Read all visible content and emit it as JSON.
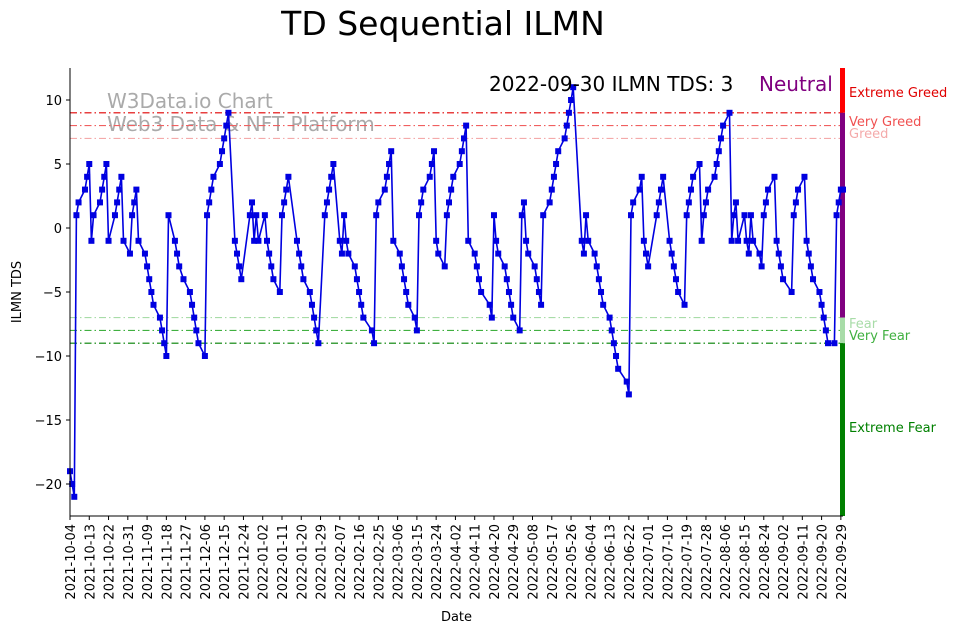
{
  "chart_data": {
    "type": "line",
    "title": "TD Sequential ILMN",
    "xlabel": "Date",
    "ylabel": "ILMN TDS",
    "ylim": [
      -22.5,
      12.5
    ],
    "xlim": [
      "2021-10-04",
      "2022-09-30"
    ],
    "yticks": [
      10,
      5,
      0,
      -5,
      -10,
      -15,
      -20
    ],
    "ytick_labels": [
      "10",
      "5",
      "0",
      "−5",
      "−10",
      "−15",
      "−20"
    ],
    "xtick_labels": [
      "2021-10-04",
      "2021-10-13",
      "2021-10-22",
      "2021-10-31",
      "2021-11-09",
      "2021-11-18",
      "2021-11-27",
      "2021-12-06",
      "2021-12-15",
      "2021-12-24",
      "2022-01-02",
      "2022-01-11",
      "2022-01-20",
      "2022-01-29",
      "2022-02-07",
      "2022-02-16",
      "2022-02-25",
      "2022-03-06",
      "2022-03-15",
      "2022-03-24",
      "2022-04-02",
      "2022-04-11",
      "2022-04-20",
      "2022-04-29",
      "2022-05-08",
      "2022-05-17",
      "2022-05-26",
      "2022-06-04",
      "2022-06-13",
      "2022-06-22",
      "2022-07-01",
      "2022-07-10",
      "2022-07-19",
      "2022-07-28",
      "2022-08-06",
      "2022-08-15",
      "2022-08-24",
      "2022-09-02",
      "2022-09-11",
      "2022-09-20",
      "2022-09-29"
    ],
    "grid": false,
    "series": [
      {
        "color": "#0000e0",
        "marker": "square",
        "points": [
          [
            "2021-10-04",
            -19
          ],
          [
            "2021-10-05",
            -20
          ],
          [
            "2021-10-06",
            -21
          ],
          [
            "2021-10-07",
            1
          ],
          [
            "2021-10-08",
            2
          ],
          [
            "2021-10-11",
            3
          ],
          [
            "2021-10-12",
            4
          ],
          [
            "2021-10-13",
            5
          ],
          [
            "2021-10-14",
            -1
          ],
          [
            "2021-10-15",
            1
          ],
          [
            "2021-10-18",
            2
          ],
          [
            "2021-10-19",
            3
          ],
          [
            "2021-10-20",
            4
          ],
          [
            "2021-10-21",
            5
          ],
          [
            "2021-10-22",
            -1
          ],
          [
            "2021-10-25",
            1
          ],
          [
            "2021-10-26",
            2
          ],
          [
            "2021-10-27",
            3
          ],
          [
            "2021-10-28",
            4
          ],
          [
            "2021-10-29",
            -1
          ],
          [
            "2021-11-01",
            -2
          ],
          [
            "2021-11-02",
            1
          ],
          [
            "2021-11-03",
            2
          ],
          [
            "2021-11-04",
            3
          ],
          [
            "2021-11-05",
            -1
          ],
          [
            "2021-11-08",
            -2
          ],
          [
            "2021-11-09",
            -3
          ],
          [
            "2021-11-10",
            -4
          ],
          [
            "2021-11-11",
            -5
          ],
          [
            "2021-11-12",
            -6
          ],
          [
            "2021-11-15",
            -7
          ],
          [
            "2021-11-16",
            -8
          ],
          [
            "2021-11-17",
            -9
          ],
          [
            "2021-11-18",
            -10
          ],
          [
            "2021-11-19",
            1
          ],
          [
            "2021-11-22",
            -1
          ],
          [
            "2021-11-23",
            -2
          ],
          [
            "2021-11-24",
            -3
          ],
          [
            "2021-11-26",
            -4
          ],
          [
            "2021-11-29",
            -5
          ],
          [
            "2021-11-30",
            -6
          ],
          [
            "2021-12-01",
            -7
          ],
          [
            "2021-12-02",
            -8
          ],
          [
            "2021-12-03",
            -9
          ],
          [
            "2021-12-06",
            -10
          ],
          [
            "2021-12-07",
            1
          ],
          [
            "2021-12-08",
            2
          ],
          [
            "2021-12-09",
            3
          ],
          [
            "2021-12-10",
            4
          ],
          [
            "2021-12-13",
            5
          ],
          [
            "2021-12-14",
            6
          ],
          [
            "2021-12-15",
            7
          ],
          [
            "2021-12-16",
            8
          ],
          [
            "2021-12-17",
            9
          ],
          [
            "2021-12-20",
            -1
          ],
          [
            "2021-12-21",
            -2
          ],
          [
            "2021-12-22",
            -3
          ],
          [
            "2021-12-23",
            -4
          ],
          [
            "2021-12-27",
            1
          ],
          [
            "2021-12-28",
            2
          ],
          [
            "2021-12-29",
            -1
          ],
          [
            "2021-12-30",
            1
          ],
          [
            "2021-12-31",
            -1
          ],
          [
            "2022-01-03",
            1
          ],
          [
            "2022-01-04",
            -1
          ],
          [
            "2022-01-05",
            -2
          ],
          [
            "2022-01-06",
            -3
          ],
          [
            "2022-01-07",
            -4
          ],
          [
            "2022-01-10",
            -5
          ],
          [
            "2022-01-11",
            1
          ],
          [
            "2022-01-12",
            2
          ],
          [
            "2022-01-13",
            3
          ],
          [
            "2022-01-14",
            4
          ],
          [
            "2022-01-18",
            -1
          ],
          [
            "2022-01-19",
            -2
          ],
          [
            "2022-01-20",
            -3
          ],
          [
            "2022-01-21",
            -4
          ],
          [
            "2022-01-24",
            -5
          ],
          [
            "2022-01-25",
            -6
          ],
          [
            "2022-01-26",
            -7
          ],
          [
            "2022-01-27",
            -8
          ],
          [
            "2022-01-28",
            -9
          ],
          [
            "2022-01-31",
            1
          ],
          [
            "2022-02-01",
            2
          ],
          [
            "2022-02-02",
            3
          ],
          [
            "2022-02-03",
            4
          ],
          [
            "2022-02-04",
            5
          ],
          [
            "2022-02-07",
            -1
          ],
          [
            "2022-02-08",
            -2
          ],
          [
            "2022-02-09",
            1
          ],
          [
            "2022-02-10",
            -1
          ],
          [
            "2022-02-11",
            -2
          ],
          [
            "2022-02-14",
            -3
          ],
          [
            "2022-02-15",
            -4
          ],
          [
            "2022-02-16",
            -5
          ],
          [
            "2022-02-17",
            -6
          ],
          [
            "2022-02-18",
            -7
          ],
          [
            "2022-02-22",
            -8
          ],
          [
            "2022-02-23",
            -9
          ],
          [
            "2022-02-24",
            1
          ],
          [
            "2022-02-25",
            2
          ],
          [
            "2022-02-28",
            3
          ],
          [
            "2022-03-01",
            4
          ],
          [
            "2022-03-02",
            5
          ],
          [
            "2022-03-03",
            6
          ],
          [
            "2022-03-04",
            -1
          ],
          [
            "2022-03-07",
            -2
          ],
          [
            "2022-03-08",
            -3
          ],
          [
            "2022-03-09",
            -4
          ],
          [
            "2022-03-10",
            -5
          ],
          [
            "2022-03-11",
            -6
          ],
          [
            "2022-03-14",
            -7
          ],
          [
            "2022-03-15",
            -8
          ],
          [
            "2022-03-16",
            1
          ],
          [
            "2022-03-17",
            2
          ],
          [
            "2022-03-18",
            3
          ],
          [
            "2022-03-21",
            4
          ],
          [
            "2022-03-22",
            5
          ],
          [
            "2022-03-23",
            6
          ],
          [
            "2022-03-24",
            -1
          ],
          [
            "2022-03-25",
            -2
          ],
          [
            "2022-03-28",
            -3
          ],
          [
            "2022-03-29",
            1
          ],
          [
            "2022-03-30",
            2
          ],
          [
            "2022-03-31",
            3
          ],
          [
            "2022-04-01",
            4
          ],
          [
            "2022-04-04",
            5
          ],
          [
            "2022-04-05",
            6
          ],
          [
            "2022-04-06",
            7
          ],
          [
            "2022-04-07",
            8
          ],
          [
            "2022-04-08",
            -1
          ],
          [
            "2022-04-11",
            -2
          ],
          [
            "2022-04-12",
            -3
          ],
          [
            "2022-04-13",
            -4
          ],
          [
            "2022-04-14",
            -5
          ],
          [
            "2022-04-18",
            -6
          ],
          [
            "2022-04-19",
            -7
          ],
          [
            "2022-04-20",
            1
          ],
          [
            "2022-04-21",
            -1
          ],
          [
            "2022-04-22",
            -2
          ],
          [
            "2022-04-25",
            -3
          ],
          [
            "2022-04-26",
            -4
          ],
          [
            "2022-04-27",
            -5
          ],
          [
            "2022-04-28",
            -6
          ],
          [
            "2022-04-29",
            -7
          ],
          [
            "2022-05-02",
            -8
          ],
          [
            "2022-05-03",
            1
          ],
          [
            "2022-05-04",
            2
          ],
          [
            "2022-05-05",
            -1
          ],
          [
            "2022-05-06",
            -2
          ],
          [
            "2022-05-09",
            -3
          ],
          [
            "2022-05-10",
            -4
          ],
          [
            "2022-05-11",
            -5
          ],
          [
            "2022-05-12",
            -6
          ],
          [
            "2022-05-13",
            1
          ],
          [
            "2022-05-16",
            2
          ],
          [
            "2022-05-17",
            3
          ],
          [
            "2022-05-18",
            4
          ],
          [
            "2022-05-19",
            5
          ],
          [
            "2022-05-20",
            6
          ],
          [
            "2022-05-23",
            7
          ],
          [
            "2022-05-24",
            8
          ],
          [
            "2022-05-25",
            9
          ],
          [
            "2022-05-26",
            10
          ],
          [
            "2022-05-27",
            11
          ],
          [
            "2022-05-31",
            -1
          ],
          [
            "2022-06-01",
            -2
          ],
          [
            "2022-06-02",
            1
          ],
          [
            "2022-06-03",
            -1
          ],
          [
            "2022-06-06",
            -2
          ],
          [
            "2022-06-07",
            -3
          ],
          [
            "2022-06-08",
            -4
          ],
          [
            "2022-06-09",
            -5
          ],
          [
            "2022-06-10",
            -6
          ],
          [
            "2022-06-13",
            -7
          ],
          [
            "2022-06-14",
            -8
          ],
          [
            "2022-06-15",
            -9
          ],
          [
            "2022-06-16",
            -10
          ],
          [
            "2022-06-17",
            -11
          ],
          [
            "2022-06-21",
            -12
          ],
          [
            "2022-06-22",
            -13
          ],
          [
            "2022-06-23",
            1
          ],
          [
            "2022-06-24",
            2
          ],
          [
            "2022-06-27",
            3
          ],
          [
            "2022-06-28",
            4
          ],
          [
            "2022-06-29",
            -1
          ],
          [
            "2022-06-30",
            -2
          ],
          [
            "2022-07-01",
            -3
          ],
          [
            "2022-07-05",
            1
          ],
          [
            "2022-07-06",
            2
          ],
          [
            "2022-07-07",
            3
          ],
          [
            "2022-07-08",
            4
          ],
          [
            "2022-07-11",
            -1
          ],
          [
            "2022-07-12",
            -2
          ],
          [
            "2022-07-13",
            -3
          ],
          [
            "2022-07-14",
            -4
          ],
          [
            "2022-07-15",
            -5
          ],
          [
            "2022-07-18",
            -6
          ],
          [
            "2022-07-19",
            1
          ],
          [
            "2022-07-20",
            2
          ],
          [
            "2022-07-21",
            3
          ],
          [
            "2022-07-22",
            4
          ],
          [
            "2022-07-25",
            5
          ],
          [
            "2022-07-26",
            -1
          ],
          [
            "2022-07-27",
            1
          ],
          [
            "2022-07-28",
            2
          ],
          [
            "2022-07-29",
            3
          ],
          [
            "2022-08-01",
            4
          ],
          [
            "2022-08-02",
            5
          ],
          [
            "2022-08-03",
            6
          ],
          [
            "2022-08-04",
            7
          ],
          [
            "2022-08-05",
            8
          ],
          [
            "2022-08-08",
            9
          ],
          [
            "2022-08-09",
            -1
          ],
          [
            "2022-08-10",
            1
          ],
          [
            "2022-08-11",
            2
          ],
          [
            "2022-08-12",
            -1
          ],
          [
            "2022-08-15",
            1
          ],
          [
            "2022-08-16",
            -1
          ],
          [
            "2022-08-17",
            -2
          ],
          [
            "2022-08-18",
            1
          ],
          [
            "2022-08-19",
            -1
          ],
          [
            "2022-08-22",
            -2
          ],
          [
            "2022-08-23",
            -3
          ],
          [
            "2022-08-24",
            1
          ],
          [
            "2022-08-25",
            2
          ],
          [
            "2022-08-26",
            3
          ],
          [
            "2022-08-29",
            4
          ],
          [
            "2022-08-30",
            -1
          ],
          [
            "2022-08-31",
            -2
          ],
          [
            "2022-09-01",
            -3
          ],
          [
            "2022-09-02",
            -4
          ],
          [
            "2022-09-06",
            -5
          ],
          [
            "2022-09-07",
            1
          ],
          [
            "2022-09-08",
            2
          ],
          [
            "2022-09-09",
            3
          ],
          [
            "2022-09-12",
            4
          ],
          [
            "2022-09-13",
            -1
          ],
          [
            "2022-09-14",
            -2
          ],
          [
            "2022-09-15",
            -3
          ],
          [
            "2022-09-16",
            -4
          ],
          [
            "2022-09-19",
            -5
          ],
          [
            "2022-09-20",
            -6
          ],
          [
            "2022-09-21",
            -7
          ],
          [
            "2022-09-22",
            -8
          ],
          [
            "2022-09-23",
            -9
          ],
          [
            "2022-09-26",
            -9
          ],
          [
            "2022-09-27",
            1
          ],
          [
            "2022-09-28",
            2
          ],
          [
            "2022-09-29",
            3
          ],
          [
            "2022-09-30",
            3
          ]
        ]
      }
    ],
    "reference_lines": [
      {
        "y": 9,
        "label": "Extreme Greed",
        "color": "#e00000",
        "label_color": "#e00000"
      },
      {
        "y": 8,
        "label": "Very Greed",
        "color": "#f06060",
        "label_color": "#f05050"
      },
      {
        "y": 7,
        "label": "Greed",
        "color": "#f4aaaa",
        "label_color": "#f4aaaa"
      },
      {
        "y": -7,
        "label": "Fear",
        "color": "#a8dca8",
        "label_color": "#a8dca8"
      },
      {
        "y": -8,
        "label": "Very Fear",
        "color": "#40b040",
        "label_color": "#40b040"
      },
      {
        "y": -9,
        "label": "Extreme Fear",
        "color": "#008000",
        "label_color": "#008000"
      }
    ],
    "side_bar": {
      "segments": [
        {
          "from": 9,
          "to": 12.5,
          "color": "#ff0000"
        },
        {
          "from": -7,
          "to": 9,
          "color": "#800080"
        },
        {
          "from": -9,
          "to": -7,
          "color": "#a8dca8"
        },
        {
          "from": -22.5,
          "to": -9,
          "color": "#008000"
        }
      ]
    },
    "annotation": {
      "text": "2022-09-30 ILMN TDS: 3",
      "status": "Neutral",
      "status_color": "#800080"
    },
    "watermark": {
      "line1": "W3Data.io Chart",
      "line2": "Web3 Data & NFT Platform"
    }
  }
}
